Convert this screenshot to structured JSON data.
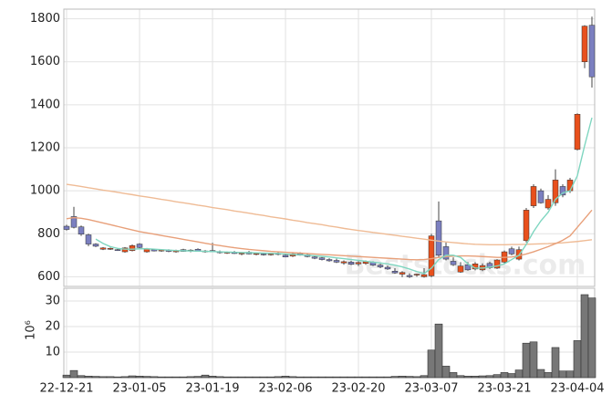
{
  "chart_data": {
    "type": "candlestick",
    "watermark": "Beststocks.com",
    "categories": [
      "22-12-21",
      null,
      null,
      null,
      null,
      null,
      null,
      null,
      null,
      null,
      "23-01-05",
      null,
      null,
      null,
      null,
      null,
      null,
      null,
      null,
      null,
      "23-01-19",
      null,
      null,
      null,
      null,
      null,
      null,
      null,
      null,
      null,
      "23-02-06",
      null,
      null,
      null,
      null,
      null,
      null,
      null,
      null,
      null,
      "23-02-20",
      null,
      null,
      null,
      null,
      null,
      null,
      null,
      null,
      null,
      "23-03-07",
      null,
      null,
      null,
      null,
      null,
      null,
      null,
      null,
      null,
      "23-03-21",
      null,
      null,
      null,
      null,
      null,
      null,
      null,
      null,
      null,
      "23-04-04",
      null,
      null
    ],
    "open": [
      835,
      880,
      832,
      795,
      752,
      728,
      730,
      726,
      716,
      722,
      752,
      716,
      726,
      722,
      724,
      716,
      726,
      720,
      728,
      718,
      722,
      716,
      712,
      714,
      708,
      714,
      706,
      706,
      704,
      708,
      700,
      696,
      708,
      702,
      692,
      688,
      680,
      676,
      664,
      668,
      660,
      662,
      668,
      654,
      644,
      626,
      612,
      606,
      608,
      600,
      604,
      860,
      740,
      672,
      622,
      656,
      636,
      632,
      662,
      640,
      668,
      730,
      682,
      768,
      930,
      1000,
      920,
      944,
      1020,
      1000,
      1192,
      1600,
      1770
    ],
    "high": [
      842,
      925,
      838,
      800,
      756,
      738,
      736,
      730,
      738,
      750,
      756,
      734,
      730,
      728,
      728,
      726,
      730,
      728,
      732,
      724,
      758,
      722,
      718,
      720,
      714,
      720,
      712,
      712,
      710,
      714,
      708,
      712,
      714,
      706,
      698,
      692,
      686,
      684,
      676,
      674,
      672,
      676,
      672,
      660,
      652,
      640,
      626,
      616,
      614,
      640,
      800,
      950,
      760,
      690,
      668,
      668,
      668,
      662,
      670,
      682,
      722,
      740,
      740,
      920,
      1030,
      1010,
      980,
      1100,
      1030,
      1060,
      1360,
      1770,
      1810
    ],
    "low": [
      815,
      825,
      790,
      742,
      738,
      724,
      725,
      720,
      712,
      718,
      732,
      712,
      718,
      716,
      714,
      712,
      716,
      714,
      716,
      712,
      714,
      708,
      706,
      706,
      700,
      704,
      700,
      698,
      698,
      700,
      690,
      692,
      698,
      690,
      682,
      676,
      670,
      664,
      656,
      654,
      650,
      656,
      650,
      640,
      632,
      614,
      598,
      594,
      600,
      596,
      598,
      690,
      676,
      650,
      618,
      628,
      630,
      626,
      636,
      636,
      662,
      700,
      676,
      760,
      920,
      940,
      912,
      930,
      970,
      990,
      1188,
      1570,
      1480
    ],
    "close": [
      820,
      830,
      798,
      752,
      742,
      734,
      732,
      724,
      734,
      745,
      736,
      730,
      720,
      724,
      718,
      722,
      718,
      724,
      718,
      720,
      716,
      712,
      714,
      708,
      710,
      706,
      708,
      702,
      706,
      704,
      692,
      706,
      700,
      694,
      686,
      680,
      674,
      668,
      670,
      658,
      666,
      670,
      654,
      646,
      636,
      618,
      620,
      600,
      612,
      610,
      790,
      700,
      682,
      656,
      650,
      632,
      660,
      652,
      642,
      678,
      716,
      706,
      726,
      910,
      1020,
      944,
      960,
      1050,
      980,
      1050,
      1356,
      1766,
      1530
    ],
    "up_color": "#e8501c",
    "down_color": "#7b7fc0",
    "ylim": [
      555,
      1845
    ],
    "yticks": [
      600,
      800,
      1000,
      1200,
      1400,
      1600,
      1800
    ],
    "grid": true,
    "series": [
      {
        "color": "#efbb95",
        "values": [
          1030,
          1025,
          1020,
          1014,
          1009,
          1003,
          998,
          993,
          987,
          982,
          976,
          971,
          966,
          960,
          955,
          949,
          944,
          939,
          933,
          928,
          922,
          917,
          912,
          906,
          901,
          896,
          890,
          885,
          879,
          874,
          869,
          863,
          858,
          852,
          847,
          842,
          836,
          831,
          825,
          820,
          815,
          811,
          806,
          802,
          797,
          793,
          788,
          784,
          779,
          775,
          770,
          766,
          762,
          759,
          756,
          753,
          751,
          750,
          749,
          749,
          749,
          750,
          750,
          751,
          752,
          753,
          754,
          756,
          758,
          761,
          764,
          768,
          772
        ]
      },
      {
        "color": "#e8a07a",
        "values": [
          870,
          875,
          872,
          866,
          858,
          850,
          842,
          834,
          826,
          818,
          810,
          804,
          798,
          792,
          786,
          780,
          774,
          768,
          762,
          756,
          750,
          745,
          740,
          735,
          731,
          727,
          724,
          721,
          718,
          716,
          714,
          712,
          710,
          708,
          706,
          704,
          702,
          700,
          698,
          696,
          694,
          692,
          690,
          688,
          686,
          684,
          682,
          680,
          679,
          680,
          684,
          690,
          694,
          696,
          697,
          697,
          696,
          694,
          692,
          690,
          690,
          692,
          698,
          706,
          716,
          728,
          740,
          754,
          770,
          790,
          830,
          870,
          910
        ]
      },
      {
        "color": "#7fd6c0",
        "values": [
          null,
          null,
          null,
          null,
          775,
          755,
          740,
          732,
          728,
          728,
          730,
          730,
          728,
          726,
          724,
          722,
          721,
          720,
          719,
          718,
          717,
          716,
          715,
          714,
          713,
          712,
          711,
          710,
          709,
          708,
          706,
          704,
          702,
          700,
          698,
          695,
          692,
          688,
          684,
          680,
          676,
          672,
          668,
          664,
          660,
          654,
          646,
          636,
          624,
          615,
          640,
          680,
          700,
          700,
          690,
          660,
          640,
          640,
          645,
          650,
          660,
          680,
          700,
          750,
          810,
          860,
          900,
          960,
          990,
          1000,
          1070,
          1210,
          1340
        ]
      }
    ],
    "volume": {
      "label": "10⁶",
      "color": "#777777",
      "values": [
        1.0,
        2.8,
        0.8,
        0.6,
        0.5,
        0.4,
        0.4,
        0.3,
        0.4,
        0.7,
        0.6,
        0.5,
        0.4,
        0.3,
        0.3,
        0.3,
        0.3,
        0.4,
        0.5,
        1.0,
        0.6,
        0.4,
        0.3,
        0.3,
        0.3,
        0.3,
        0.3,
        0.3,
        0.3,
        0.4,
        0.6,
        0.4,
        0.3,
        0.3,
        0.3,
        0.3,
        0.3,
        0.3,
        0.3,
        0.3,
        0.3,
        0.3,
        0.3,
        0.3,
        0.3,
        0.5,
        0.6,
        0.5,
        0.4,
        0.8,
        10.8,
        21.0,
        4.5,
        2.0,
        0.8,
        0.6,
        0.6,
        0.7,
        0.8,
        1.2,
        2.0,
        1.6,
        3.0,
        13.5,
        14.0,
        3.2,
        2.0,
        11.8,
        2.6,
        2.6,
        14.5,
        32.5,
        31.2
      ],
      "ylim": [
        0,
        35
      ],
      "yticks": [
        10,
        20,
        30
      ]
    }
  }
}
